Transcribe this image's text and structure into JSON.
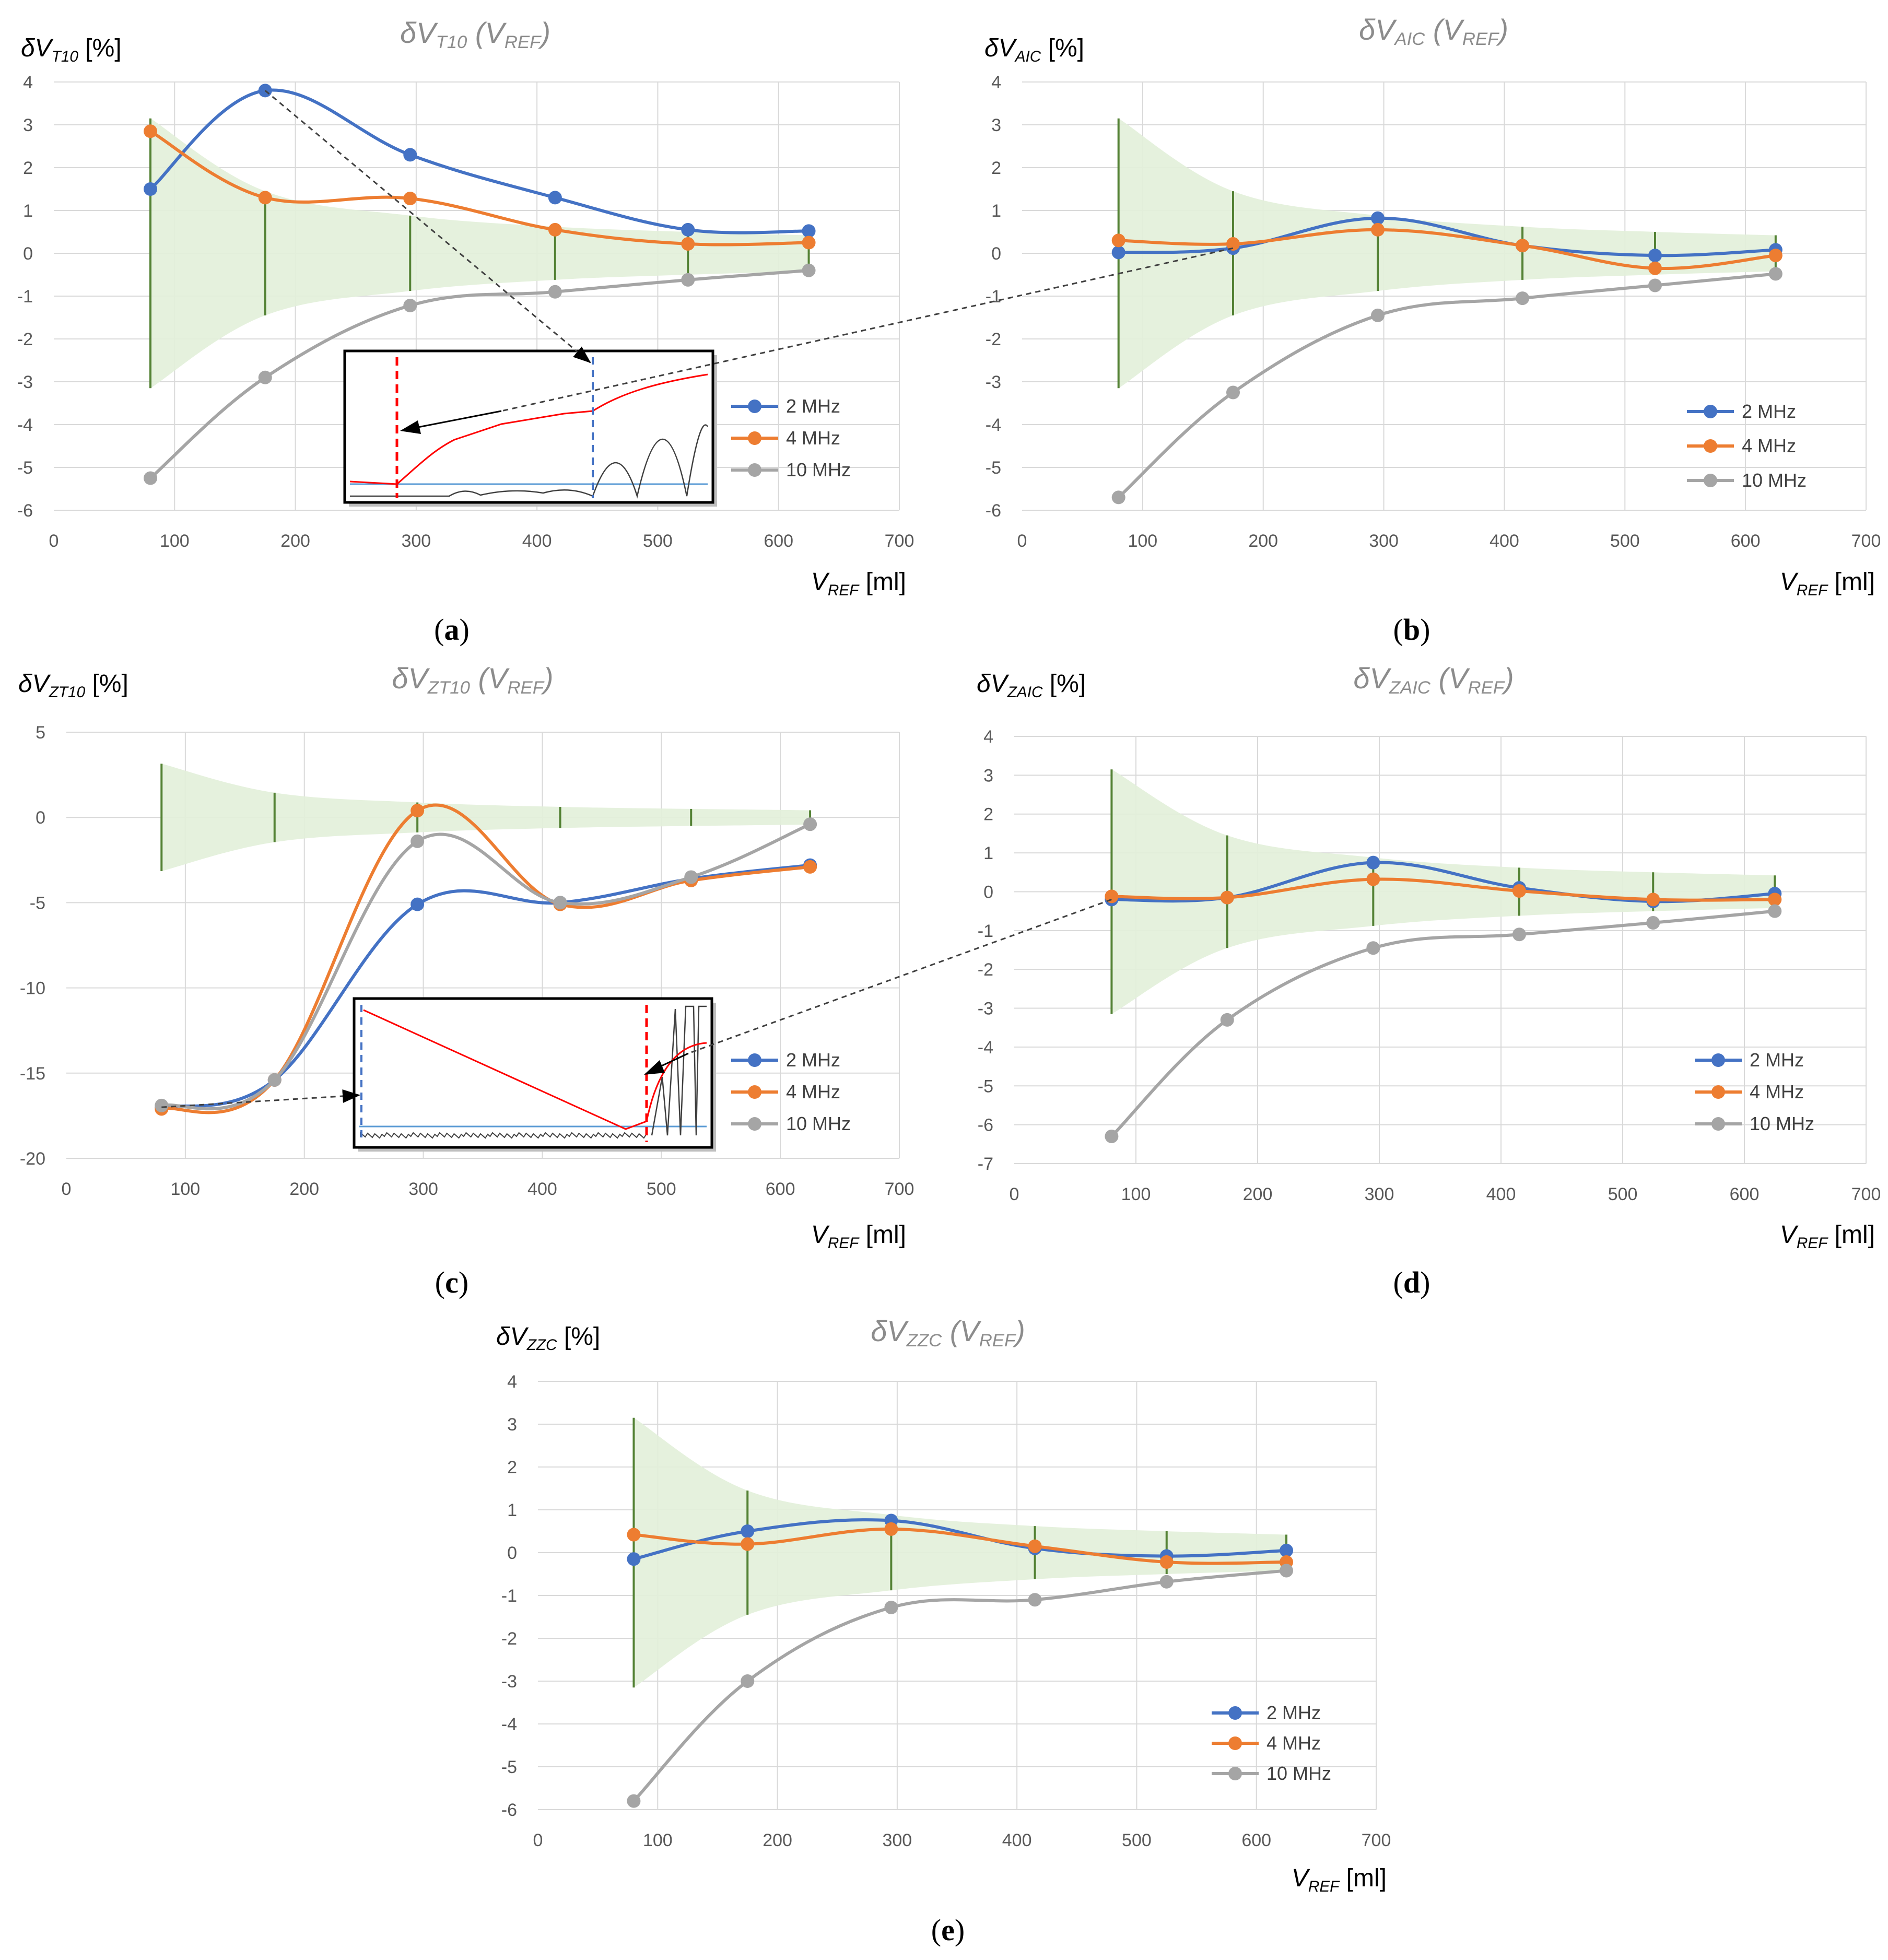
{
  "colors": {
    "s2": "#4472c4",
    "s4": "#ed7d31",
    "s10": "#a5a5a5",
    "band": "#e2f0d9",
    "error_bar": "#548235",
    "grid": "#d9d9d9",
    "inset_red": "#ff0000",
    "inset_blue": "#4472c4",
    "inset_cyan": "#5b9bd5"
  },
  "legend": [
    "2 MHz",
    "4 MHz",
    "10 MHz"
  ],
  "chart_data": [
    {
      "id": "a",
      "type": "line",
      "caption_letter": "a",
      "title": {
        "main": "δV",
        "sub": "T10",
        "rest": " (V",
        "sub2": "REF",
        "close": ")"
      },
      "ylabel": {
        "main": "δV",
        "sub": "T10",
        "unit": " [%]"
      },
      "xlabel": {
        "main": "V",
        "sub": "REF",
        "unit": " [ml]"
      },
      "xlim": [
        0,
        700
      ],
      "ylim": [
        -6,
        4
      ],
      "xticks": [
        0,
        100,
        200,
        300,
        400,
        500,
        600,
        700
      ],
      "yticks": [
        -6,
        -5,
        -4,
        -3,
        -2,
        -1,
        0,
        1,
        2,
        3,
        4
      ],
      "x": [
        80,
        175,
        295,
        415,
        525,
        625
      ],
      "series": [
        {
          "name": "2 MHz",
          "values": [
            1.5,
            3.8,
            2.3,
            1.3,
            0.55,
            0.52
          ]
        },
        {
          "name": "4 MHz",
          "values": [
            2.85,
            1.3,
            1.28,
            0.55,
            0.22,
            0.25
          ]
        },
        {
          "name": "10 MHz",
          "values": [
            -5.25,
            -2.9,
            -1.22,
            -0.9,
            -0.62,
            -0.4
          ]
        }
      ],
      "uncertainty": [
        3.15,
        1.45,
        0.88,
        0.62,
        0.5,
        0.42
      ],
      "band_half": [
        3.15,
        1.45,
        0.88,
        0.62,
        0.5,
        0.42
      ],
      "error_bars_x": [
        80,
        175,
        295,
        415,
        525,
        625
      ]
    },
    {
      "id": "b",
      "type": "line",
      "caption_letter": "b",
      "title": {
        "main": "δV",
        "sub": "AIC",
        "rest": " (V",
        "sub2": "REF",
        "close": ")"
      },
      "ylabel": {
        "main": "δV",
        "sub": "AIC",
        "unit": " [%]"
      },
      "xlabel": {
        "main": "V",
        "sub": "REF",
        "unit": " [ml]"
      },
      "xlim": [
        0,
        700
      ],
      "ylim": [
        -6,
        4
      ],
      "xticks": [
        0,
        100,
        200,
        300,
        400,
        500,
        600,
        700
      ],
      "yticks": [
        -6,
        -5,
        -4,
        -3,
        -2,
        -1,
        0,
        1,
        2,
        3,
        4
      ],
      "x": [
        80,
        175,
        295,
        415,
        525,
        625
      ],
      "series": [
        {
          "name": "2 MHz",
          "values": [
            0.02,
            0.12,
            0.82,
            0.18,
            -0.05,
            0.08
          ]
        },
        {
          "name": "4 MHz",
          "values": [
            0.3,
            0.22,
            0.55,
            0.18,
            -0.35,
            -0.05
          ]
        },
        {
          "name": "10 MHz",
          "values": [
            -5.7,
            -3.25,
            -1.45,
            -1.05,
            -0.75,
            -0.48
          ]
        }
      ],
      "band_half": [
        3.15,
        1.45,
        0.88,
        0.62,
        0.5,
        0.42
      ],
      "error_bars_x": [
        80,
        175,
        295,
        415,
        525,
        625
      ]
    },
    {
      "id": "c",
      "type": "line",
      "caption_letter": "c",
      "title": {
        "main": "δV",
        "sub": "ZT10",
        "rest": " (V",
        "sub2": "REF",
        "close": ")"
      },
      "ylabel": {
        "main": "δV",
        "sub": "ZT10",
        "unit": " [%]"
      },
      "xlabel": {
        "main": "V",
        "sub": "REF",
        "unit": " [ml]"
      },
      "xlim": [
        0,
        700
      ],
      "ylim": [
        -20,
        5
      ],
      "xticks": [
        0,
        100,
        200,
        300,
        400,
        500,
        600,
        700
      ],
      "yticks": [
        -20,
        -15,
        -10,
        -5,
        0,
        5
      ],
      "x": [
        80,
        175,
        295,
        415,
        525,
        625
      ],
      "series": [
        {
          "name": "2 MHz",
          "values": [
            -17.0,
            -15.4,
            -5.1,
            -5.0,
            -3.6,
            -2.8
          ]
        },
        {
          "name": "4 MHz",
          "values": [
            -17.1,
            -15.4,
            0.4,
            -5.1,
            -3.7,
            -2.9
          ]
        },
        {
          "name": "10 MHz",
          "values": [
            -16.9,
            -15.4,
            -1.4,
            -5.0,
            -3.5,
            -0.4
          ]
        }
      ],
      "band_half": [
        3.15,
        1.45,
        0.88,
        0.62,
        0.5,
        0.42
      ],
      "error_bars_x": [
        80,
        175,
        295,
        415,
        525,
        625
      ]
    },
    {
      "id": "d",
      "type": "line",
      "caption_letter": "d",
      "title": {
        "main": "δV",
        "sub": "ZAIC",
        "rest": " (V",
        "sub2": "REF",
        "close": ")"
      },
      "ylabel": {
        "main": "δV",
        "sub": "ZAIC",
        "unit": " [%]"
      },
      "xlabel": {
        "main": "V",
        "sub": "REF",
        "unit": " [ml]"
      },
      "xlim": [
        0,
        700
      ],
      "ylim": [
        -7,
        4
      ],
      "xticks": [
        0,
        100,
        200,
        300,
        400,
        500,
        600,
        700
      ],
      "yticks": [
        -7,
        -6,
        -5,
        -4,
        -3,
        -2,
        -1,
        0,
        1,
        2,
        3,
        4
      ],
      "x": [
        80,
        175,
        295,
        415,
        525,
        625
      ],
      "series": [
        {
          "name": "2 MHz",
          "values": [
            -0.2,
            -0.15,
            0.75,
            0.1,
            -0.25,
            -0.05
          ]
        },
        {
          "name": "4 MHz",
          "values": [
            -0.12,
            -0.15,
            0.32,
            0.02,
            -0.2,
            -0.2
          ]
        },
        {
          "name": "10 MHz",
          "values": [
            -6.3,
            -3.3,
            -1.45,
            -1.1,
            -0.8,
            -0.5
          ]
        }
      ],
      "band_half": [
        3.15,
        1.45,
        0.88,
        0.62,
        0.5,
        0.42
      ],
      "error_bars_x": [
        80,
        175,
        295,
        415,
        525,
        625
      ]
    },
    {
      "id": "e",
      "type": "line",
      "caption_letter": "e",
      "title": {
        "main": "δV",
        "sub": "ZZC",
        "rest": " (V",
        "sub2": "REF",
        "close": ")"
      },
      "ylabel": {
        "main": "δV",
        "sub": "ZZC",
        "unit": " [%]"
      },
      "xlabel": {
        "main": "V",
        "sub": "REF",
        "unit": " [ml]"
      },
      "xlim": [
        0,
        700
      ],
      "ylim": [
        -6,
        4
      ],
      "xticks": [
        0,
        100,
        200,
        300,
        400,
        500,
        600,
        700
      ],
      "yticks": [
        -6,
        -5,
        -4,
        -3,
        -2,
        -1,
        0,
        1,
        2,
        3,
        4
      ],
      "x": [
        80,
        175,
        295,
        415,
        525,
        625
      ],
      "series": [
        {
          "name": "2 MHz",
          "values": [
            -0.15,
            0.5,
            0.75,
            0.1,
            -0.08,
            0.05
          ]
        },
        {
          "name": "4 MHz",
          "values": [
            0.42,
            0.2,
            0.55,
            0.15,
            -0.22,
            -0.22
          ]
        },
        {
          "name": "10 MHz",
          "values": [
            -5.8,
            -3.0,
            -1.28,
            -1.1,
            -0.68,
            -0.42
          ]
        }
      ],
      "band_half": [
        3.15,
        1.45,
        0.88,
        0.62,
        0.5,
        0.42
      ],
      "error_bars_x": [
        80,
        175,
        295,
        415,
        525,
        625
      ]
    }
  ]
}
